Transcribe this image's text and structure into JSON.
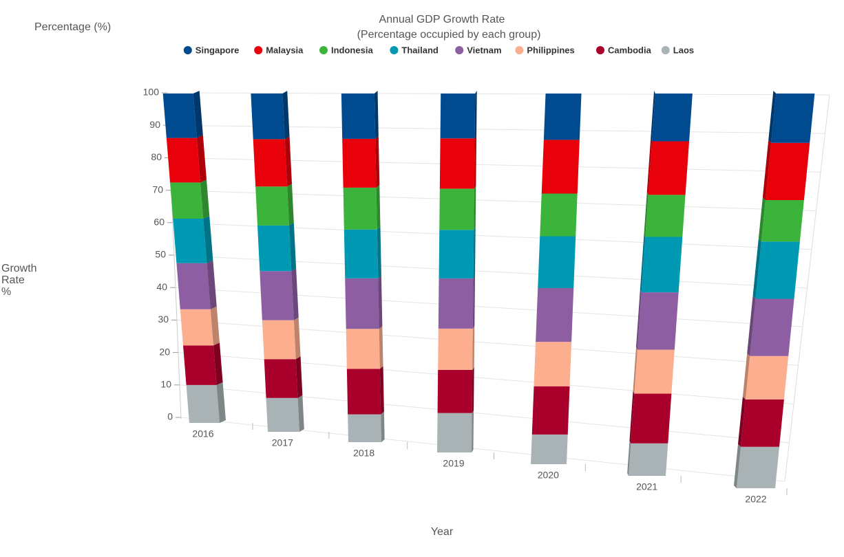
{
  "chart_data": {
    "type": "stacked-bar-3d",
    "title": "Annual GDP Growth Rate",
    "subtitle": "(Percentage occupied by each group)",
    "unit_label": "Percentage (%)",
    "y_axis_label": "Growth Rate %",
    "x_axis_label": "Year",
    "categories": [
      "2016",
      "2017",
      "2018",
      "2019",
      "2020",
      "2021",
      "2022"
    ],
    "series": [
      {
        "name": "Singapore",
        "color": "#004a8f",
        "values": [
          13.5,
          13.5,
          13,
          12.5,
          12.5,
          12.5,
          12.5
        ]
      },
      {
        "name": "Malaysia",
        "color": "#e8000b",
        "values": [
          13.5,
          14,
          14,
          14,
          14.5,
          14,
          14.5
        ]
      },
      {
        "name": "Indonesia",
        "color": "#3cb43c",
        "values": [
          11,
          11.5,
          12,
          11.5,
          11.5,
          11,
          10.5
        ]
      },
      {
        "name": "Thailand",
        "color": "#0099b4",
        "values": [
          13.5,
          13.5,
          14,
          13.5,
          14,
          14.5,
          14.5
        ]
      },
      {
        "name": "Vietnam",
        "color": "#8e5ea2",
        "values": [
          14,
          14.5,
          14.5,
          14,
          14.5,
          15,
          14.5
        ]
      },
      {
        "name": "Philippines",
        "color": "#fcae8e",
        "values": [
          11,
          11.5,
          11.5,
          11.5,
          12,
          11.5,
          11
        ]
      },
      {
        "name": "Cambodia",
        "color": "#a8002b",
        "values": [
          12,
          11.5,
          13,
          12,
          13,
          13,
          12
        ]
      },
      {
        "name": "Laos",
        "color": "#a9b3b5",
        "values": [
          11.5,
          10,
          8,
          11,
          8,
          8.5,
          10.5
        ]
      }
    ],
    "ylim": [
      0,
      100
    ],
    "yticks": [
      0,
      10,
      20,
      30,
      40,
      50,
      60,
      70,
      80,
      90,
      100
    ],
    "grid": true
  }
}
